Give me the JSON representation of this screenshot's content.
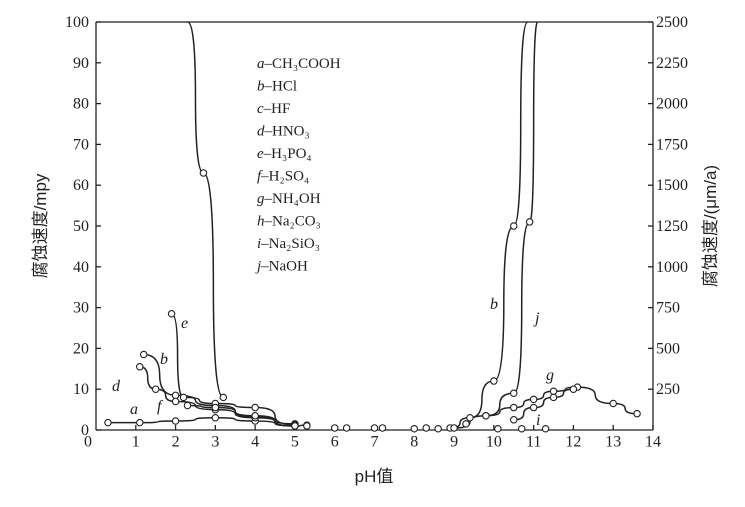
{
  "chart_data": {
    "type": "line",
    "xlabel": "pH值",
    "ylabel_left": "腐蚀速度/mpy",
    "ylabel_right": "腐蚀速度/(μm/a)",
    "xlim": [
      0,
      14
    ],
    "ylim_left": [
      0,
      100
    ],
    "ylim_right": [
      0,
      2500
    ],
    "x_ticks": [
      1,
      2,
      3,
      4,
      5,
      6,
      7,
      8,
      9,
      10,
      11,
      12,
      13,
      14
    ],
    "y_ticks_left": [
      0,
      10,
      20,
      30,
      40,
      50,
      60,
      70,
      80,
      90,
      100
    ],
    "y_ticks_right": [
      250,
      500,
      750,
      1000,
      1250,
      1500,
      1750,
      2000,
      2250,
      2500
    ],
    "grid": false,
    "legend": [
      {
        "key": "a",
        "text": "–CH₃COOH"
      },
      {
        "key": "b",
        "text": "–HCl"
      },
      {
        "key": "c",
        "text": "–HF"
      },
      {
        "key": "d",
        "text": "–HNO₃"
      },
      {
        "key": "e",
        "text": "–H₃PO₄"
      },
      {
        "key": "f",
        "text": "–H₂SO₄"
      },
      {
        "key": "g",
        "text": "–NH₄OH"
      },
      {
        "key": "h",
        "text": "–Na₂CO₃"
      },
      {
        "key": "i",
        "text": "–Na₂SiO₃"
      },
      {
        "key": "j",
        "text": "–NaOH"
      }
    ],
    "series": [
      {
        "name": "a",
        "x": [
          0.3,
          1.1,
          2.0,
          3.0,
          4.0,
          5.0,
          5.3
        ],
        "y": [
          1.8,
          1.8,
          2.2,
          3.0,
          2.2,
          1.0,
          1.2
        ]
      },
      {
        "name": "b",
        "x": [
          1.2,
          2.0,
          3.0,
          4.0,
          5.0
        ],
        "y": [
          18.5,
          8.5,
          6.0,
          3.2,
          1.5
        ]
      },
      {
        "name": "e",
        "x": [
          1.9,
          2.2,
          3.0,
          4.0,
          5.0
        ],
        "y": [
          28.5,
          8.0,
          6.5,
          5.5,
          1.3
        ]
      },
      {
        "name": "d",
        "x": [
          1.1,
          1.5,
          2.0,
          3.0,
          4.0,
          5.0
        ],
        "y": [
          15.5,
          10.0,
          7.0,
          5.0,
          3.0,
          1.0
        ]
      },
      {
        "name": "f",
        "x": [
          2.3,
          3.0,
          4.0,
          5.0
        ],
        "y": [
          6.0,
          5.5,
          3.5,
          1.0
        ]
      },
      {
        "name": "c",
        "x": [
          2.3,
          2.7,
          3.2
        ],
        "y": [
          100,
          63,
          8
        ]
      },
      {
        "name": "b_alkaline",
        "x": [
          8.9,
          9.4,
          10.0,
          10.5,
          10.85
        ],
        "y": [
          0.5,
          3.0,
          12.0,
          50.0,
          100
        ]
      },
      {
        "name": "j",
        "x": [
          9.0,
          9.8,
          10.5,
          10.9,
          11.1
        ],
        "y": [
          0.5,
          3.5,
          9.0,
          51.0,
          100
        ]
      },
      {
        "name": "g",
        "x": [
          9.8,
          10.5,
          11.0,
          11.5,
          12.1,
          13.0,
          13.6
        ],
        "y": [
          3.5,
          5.5,
          7.5,
          9.5,
          10.5,
          6.5,
          4.0
        ]
      },
      {
        "name": "h",
        "x": [
          10.5,
          11.0,
          11.5,
          12.0
        ],
        "y": [
          2.5,
          5.5,
          8.0,
          10.0
        ]
      },
      {
        "name": "i",
        "x": [
          10.1,
          10.7,
          11.3
        ],
        "y": [
          0.3,
          0.3,
          0.3
        ]
      },
      {
        "name": "neutral_points",
        "x": [
          5.3,
          6.0,
          6.3,
          7.0,
          7.2,
          8.0,
          8.3,
          8.6,
          9.3
        ],
        "y": [
          1.0,
          0.5,
          0.5,
          0.5,
          0.5,
          0.3,
          0.5,
          0.3,
          1.5
        ]
      }
    ]
  }
}
